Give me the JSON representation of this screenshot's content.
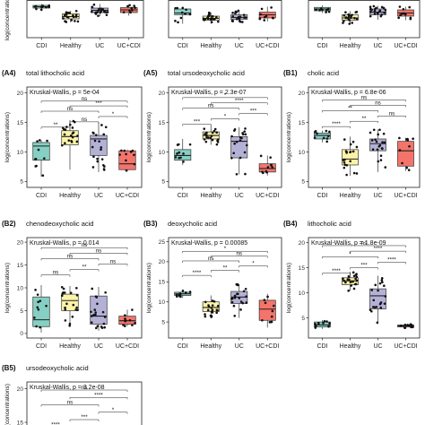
{
  "figure": {
    "groups": [
      "CDI",
      "Healthy",
      "UC",
      "UC+CDI"
    ],
    "colors": {
      "CDI": "#86cfc4",
      "Healthy": "#fbf3a7",
      "UC": "#b4b1d6",
      "UC+CDI": "#f4746b"
    },
    "ylabel": "log(concentrations)",
    "test_name": "Kruskal-Wallis"
  },
  "chart_data": [
    {
      "id": "top-left",
      "type": "box",
      "panel_label": "",
      "title": "",
      "subtitle": "",
      "ylim": [
        0,
        20
      ],
      "yticks": [],
      "xlabels": [
        "CDI",
        "Healthy",
        "UC",
        "UC+CDI"
      ],
      "ylabel": "log(concentrations)",
      "boxes": [
        {
          "group": "CDI",
          "q1": 13.2,
          "median": 13.8,
          "q3": 14.4,
          "lo": 12.4,
          "hi": 15.1
        },
        {
          "group": "Healthy",
          "q1": 8.4,
          "median": 9.4,
          "q3": 10.6,
          "lo": 6.8,
          "hi": 12.0
        },
        {
          "group": "UC",
          "q1": 11.2,
          "median": 12.2,
          "q3": 13.2,
          "lo": 9.6,
          "hi": 15.0
        },
        {
          "group": "UC+CDI",
          "q1": 11.2,
          "median": 12.4,
          "q3": 13.4,
          "lo": 9.8,
          "hi": 14.6
        }
      ],
      "brackets": []
    },
    {
      "id": "top-mid",
      "type": "box",
      "panel_label": "",
      "title": "",
      "subtitle": "",
      "ylim": [
        0,
        20
      ],
      "yticks": [],
      "xlabels": [
        "CDI",
        "Healthy",
        "UC",
        "UC+CDI"
      ],
      "ylabel": "",
      "boxes": [
        {
          "group": "CDI",
          "q1": 10.2,
          "median": 11.0,
          "q3": 12.8,
          "lo": 6.2,
          "hi": 13.4
        },
        {
          "group": "Healthy",
          "q1": 7.8,
          "median": 8.6,
          "q3": 9.6,
          "lo": 6.2,
          "hi": 11.2
        },
        {
          "group": "UC",
          "q1": 8.2,
          "median": 9.0,
          "q3": 10.2,
          "lo": 6.8,
          "hi": 12.2
        },
        {
          "group": "UC+CDI",
          "q1": 8.8,
          "median": 10.2,
          "q3": 11.4,
          "lo": 7.2,
          "hi": 13.8
        }
      ],
      "brackets": []
    },
    {
      "id": "top-right",
      "type": "box",
      "panel_label": "",
      "title": "",
      "subtitle": "",
      "ylim": [
        0,
        20
      ],
      "yticks": [],
      "xlabels": [
        "CDI",
        "Healthy",
        "UC",
        "UC+CDI"
      ],
      "ylabel": "",
      "boxes": [
        {
          "group": "CDI",
          "q1": 12.0,
          "median": 12.8,
          "q3": 13.5,
          "lo": 11.0,
          "hi": 14.4
        },
        {
          "group": "Healthy",
          "q1": 7.8,
          "median": 8.8,
          "q3": 10.2,
          "lo": 6.0,
          "hi": 11.8
        },
        {
          "group": "UC",
          "q1": 10.2,
          "median": 11.4,
          "q3": 12.8,
          "lo": 8.0,
          "hi": 14.2
        },
        {
          "group": "UC+CDI",
          "q1": 9.6,
          "median": 11.0,
          "q3": 12.4,
          "lo": 7.8,
          "hi": 13.8
        }
      ],
      "brackets": []
    },
    {
      "id": "A4",
      "type": "box",
      "panel_label": "(A4)",
      "title": "total lithocholic acid",
      "subtitle": "Kruskal-Wallis, p = 5e-04",
      "ylim": [
        4,
        21
      ],
      "yticks": [
        5,
        10,
        15,
        20
      ],
      "xlabels": [
        "CDI",
        "Healthy",
        "UC",
        "UC+CDI"
      ],
      "ylabel": "log(concentrations)",
      "boxes": [
        {
          "group": "CDI",
          "q1": 8.6,
          "median": 11.0,
          "q3": 11.6,
          "lo": 5.8,
          "hi": 12.0
        },
        {
          "group": "Healthy",
          "q1": 11.2,
          "median": 12.6,
          "q3": 13.6,
          "lo": 7.0,
          "hi": 15.4
        },
        {
          "group": "UC",
          "q1": 9.4,
          "median": 12.2,
          "q3": 12.8,
          "lo": 6.6,
          "hi": 15.0
        },
        {
          "group": "UC+CDI",
          "q1": 7.0,
          "median": 8.0,
          "q3": 10.2,
          "lo": 6.8,
          "hi": 10.4
        }
      ],
      "brackets": [
        {
          "from": "CDI",
          "to": "UC+CDI",
          "label": "ns",
          "y": 18.6
        },
        {
          "from": "Healthy",
          "to": "UC+CDI",
          "label": "***",
          "y": 17.8
        },
        {
          "from": "CDI",
          "to": "UC",
          "label": "ns",
          "y": 16.9
        },
        {
          "from": "UC",
          "to": "UC+CDI",
          "label": "*",
          "y": 16.0
        },
        {
          "from": "Healthy",
          "to": "UC",
          "label": "ns",
          "y": 15.1
        },
        {
          "from": "CDI",
          "to": "Healthy",
          "label": "**",
          "y": 14.2
        }
      ]
    },
    {
      "id": "A5",
      "type": "box",
      "panel_label": "(A5)",
      "title": "total ursodeoxycholic acid",
      "subtitle": "Kruskal-Wallis, p = 2.3e-07",
      "ylim": [
        4,
        21
      ],
      "yticks": [
        5,
        10,
        15,
        20
      ],
      "xlabels": [
        "CDI",
        "Healthy",
        "UC",
        "UC+CDI"
      ],
      "ylabel": "log(concentrations)",
      "boxes": [
        {
          "group": "CDI",
          "q1": 8.6,
          "median": 9.4,
          "q3": 10.4,
          "lo": 7.8,
          "hi": 12.2
        },
        {
          "group": "Healthy",
          "q1": 12.2,
          "median": 12.8,
          "q3": 13.4,
          "lo": 11.2,
          "hi": 14.6
        },
        {
          "group": "UC",
          "q1": 9.0,
          "median": 11.8,
          "q3": 12.6,
          "lo": 6.2,
          "hi": 14.2
        },
        {
          "group": "UC+CDI",
          "q1": 6.6,
          "median": 7.2,
          "q3": 8.0,
          "lo": 6.0,
          "hi": 9.4
        }
      ],
      "brackets": [
        {
          "from": "CDI",
          "to": "UC+CDI",
          "label": "*",
          "y": 19.2
        },
        {
          "from": "Healthy",
          "to": "UC+CDI",
          "label": "****",
          "y": 18.3
        },
        {
          "from": "CDI",
          "to": "UC",
          "label": "ns",
          "y": 17.4
        },
        {
          "from": "UC",
          "to": "UC+CDI",
          "label": "***",
          "y": 16.5
        },
        {
          "from": "Healthy",
          "to": "UC",
          "label": "*",
          "y": 15.6
        },
        {
          "from": "CDI",
          "to": "Healthy",
          "label": "***",
          "y": 14.7
        }
      ]
    },
    {
      "id": "B1",
      "type": "box",
      "panel_label": "(B1)",
      "title": "cholic acid",
      "subtitle": "Kruskal-Wallis, p = 6.8e-06",
      "ylim": [
        4,
        21
      ],
      "yticks": [
        5,
        10,
        15,
        20
      ],
      "xlabels": [
        "CDI",
        "Healthy",
        "UC",
        "UC+CDI"
      ],
      "ylabel": "log(concentrations)",
      "boxes": [
        {
          "group": "CDI",
          "q1": 12.2,
          "median": 12.8,
          "q3": 13.2,
          "lo": 11.6,
          "hi": 13.6
        },
        {
          "group": "Healthy",
          "q1": 7.8,
          "median": 8.8,
          "q3": 10.4,
          "lo": 6.0,
          "hi": 12.6
        },
        {
          "group": "UC",
          "q1": 10.2,
          "median": 11.4,
          "q3": 12.2,
          "lo": 6.6,
          "hi": 13.8
        },
        {
          "group": "UC+CDI",
          "q1": 7.6,
          "median": 10.2,
          "q3": 11.8,
          "lo": 6.8,
          "hi": 12.4
        }
      ],
      "brackets": [
        {
          "from": "CDI",
          "to": "UC+CDI",
          "label": "ns",
          "y": 18.8
        },
        {
          "from": "Healthy",
          "to": "UC+CDI",
          "label": "ns",
          "y": 17.9
        },
        {
          "from": "CDI",
          "to": "UC",
          "label": "**",
          "y": 17.0
        },
        {
          "from": "UC",
          "to": "UC+CDI",
          "label": "ns",
          "y": 16.1
        },
        {
          "from": "Healthy",
          "to": "UC",
          "label": "**",
          "y": 15.2
        },
        {
          "from": "CDI",
          "to": "Healthy",
          "label": "****",
          "y": 14.3
        }
      ]
    },
    {
      "id": "B2",
      "type": "box",
      "panel_label": "(B2)",
      "title": "chenodeoxycholic acid",
      "subtitle": "Kruskal-Wallis, p = 0.014",
      "ylim": [
        -1,
        21
      ],
      "yticks": [
        0,
        5,
        10,
        15,
        20
      ],
      "xlabels": [
        "CDI",
        "Healthy",
        "UC",
        "UC+CDI"
      ],
      "ylabel": "log(concentrations)",
      "boxes": [
        {
          "group": "CDI",
          "q1": 1.5,
          "median": 3.0,
          "q3": 8.0,
          "lo": 0.2,
          "hi": 10.6
        },
        {
          "group": "Healthy",
          "q1": 5.0,
          "median": 7.2,
          "q3": 8.6,
          "lo": 1.6,
          "hi": 10.4
        },
        {
          "group": "UC",
          "q1": 2.0,
          "median": 3.8,
          "q3": 8.2,
          "lo": 0.6,
          "hi": 10.2
        },
        {
          "group": "UC+CDI",
          "q1": 2.0,
          "median": 2.8,
          "q3": 3.8,
          "lo": 1.6,
          "hi": 5.2
        }
      ],
      "brackets": [
        {
          "from": "CDI",
          "to": "UC+CDI",
          "label": "ns",
          "y": 18.8
        },
        {
          "from": "Healthy",
          "to": "UC+CDI",
          "label": "ns",
          "y": 17.6
        },
        {
          "from": "CDI",
          "to": "UC",
          "label": "ns",
          "y": 16.4
        },
        {
          "from": "UC",
          "to": "UC+CDI",
          "label": "ns",
          "y": 15.2
        },
        {
          "from": "Healthy",
          "to": "UC",
          "label": "**",
          "y": 14.0
        },
        {
          "from": "CDI",
          "to": "Healthy",
          "label": "ns",
          "y": 12.8
        }
      ]
    },
    {
      "id": "B3",
      "type": "box",
      "panel_label": "(B3)",
      "title": "deoxycholic acid",
      "subtitle": "Kruskal-Wallis, p = 0.00085",
      "ylim": [
        1,
        26
      ],
      "yticks": [
        5,
        10,
        15,
        20,
        25
      ],
      "xlabels": [
        "CDI",
        "Healthy",
        "UC",
        "UC+CDI"
      ],
      "ylabel": "log(concentrations)",
      "boxes": [
        {
          "group": "CDI",
          "q1": 11.6,
          "median": 12.0,
          "q3": 12.4,
          "lo": 11.0,
          "hi": 12.8
        },
        {
          "group": "Healthy",
          "q1": 7.6,
          "median": 8.6,
          "q3": 10.0,
          "lo": 6.2,
          "hi": 11.6
        },
        {
          "group": "UC",
          "q1": 9.6,
          "median": 11.2,
          "q3": 12.6,
          "lo": 6.0,
          "hi": 14.4
        },
        {
          "group": "UC+CDI",
          "q1": 5.4,
          "median": 8.2,
          "q3": 10.4,
          "lo": 3.6,
          "hi": 12.0
        }
      ],
      "brackets": [
        {
          "from": "CDI",
          "to": "UC+CDI",
          "label": "*",
          "y": 22.6
        },
        {
          "from": "Healthy",
          "to": "UC+CDI",
          "label": "ns",
          "y": 21.4
        },
        {
          "from": "CDI",
          "to": "UC",
          "label": "ns",
          "y": 20.2
        },
        {
          "from": "UC",
          "to": "UC+CDI",
          "label": "*",
          "y": 19.0
        },
        {
          "from": "Healthy",
          "to": "UC",
          "label": "**",
          "y": 17.8
        },
        {
          "from": "CDI",
          "to": "Healthy",
          "label": "****",
          "y": 16.6
        }
      ]
    },
    {
      "id": "B4",
      "type": "box",
      "panel_label": "(B4)",
      "title": "lithocholic acid",
      "subtitle": "Kruskal-Wallis, p = 1.8e-09",
      "ylim": [
        1,
        21
      ],
      "yticks": [
        5,
        10,
        15,
        20
      ],
      "xlabels": [
        "CDI",
        "Healthy",
        "UC",
        "UC+CDI"
      ],
      "ylabel": "log(concentrations)",
      "boxes": [
        {
          "group": "CDI",
          "q1": 3.2,
          "median": 3.6,
          "q3": 4.2,
          "lo": 2.8,
          "hi": 4.6
        },
        {
          "group": "Healthy",
          "q1": 11.6,
          "median": 12.4,
          "q3": 13.0,
          "lo": 10.4,
          "hi": 14.2
        },
        {
          "group": "UC",
          "q1": 6.8,
          "median": 9.4,
          "q3": 10.8,
          "lo": 3.8,
          "hi": 13.4
        },
        {
          "group": "UC+CDI",
          "q1": 3.2,
          "median": 3.4,
          "q3": 3.6,
          "lo": 3.0,
          "hi": 3.8
        }
      ],
      "brackets": [
        {
          "from": "CDI",
          "to": "UC+CDI",
          "label": "ns",
          "y": 19.4
        },
        {
          "from": "Healthy",
          "to": "UC+CDI",
          "label": "****",
          "y": 18.3
        },
        {
          "from": "CDI",
          "to": "UC",
          "label": "*",
          "y": 17.2
        },
        {
          "from": "UC",
          "to": "UC+CDI",
          "label": "****",
          "y": 16.1
        },
        {
          "from": "Healthy",
          "to": "UC",
          "label": "***",
          "y": 15.0
        },
        {
          "from": "CDI",
          "to": "Healthy",
          "label": "****",
          "y": 13.9
        }
      ]
    },
    {
      "id": "B5",
      "type": "box",
      "panel_label": "(B5)",
      "title": "ursodeoxycholic acid",
      "subtitle": "Kruskal-Wallis, p = 3.2e-08",
      "ylim": [
        13,
        21
      ],
      "yticks": [
        15,
        20
      ],
      "xlabels": [],
      "ylabel": "log(concentrations)",
      "boxes": [],
      "brackets": [
        {
          "from": "CDI",
          "to": "UC+CDI",
          "label": "ns",
          "y": 19.8
        },
        {
          "from": "Healthy",
          "to": "UC+CDI",
          "label": "****",
          "y": 18.7
        },
        {
          "from": "CDI",
          "to": "UC",
          "label": "ns",
          "y": 17.6
        },
        {
          "from": "UC",
          "to": "UC+CDI",
          "label": "*",
          "y": 16.5
        },
        {
          "from": "Healthy",
          "to": "UC",
          "label": "***",
          "y": 15.4
        },
        {
          "from": "CDI",
          "to": "Healthy",
          "label": "****",
          "y": 14.3
        }
      ]
    }
  ]
}
